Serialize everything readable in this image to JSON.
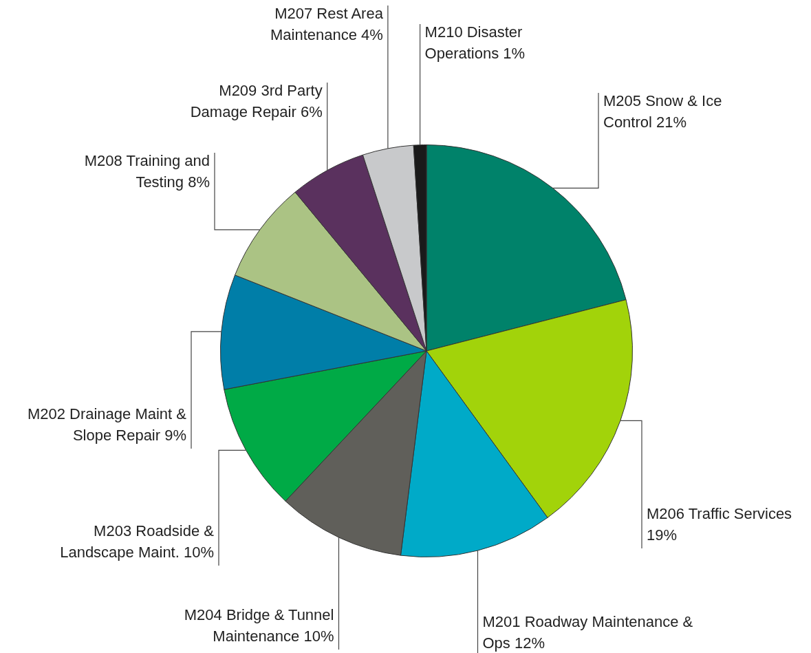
{
  "chart_data": {
    "type": "pie",
    "categories": [
      "M205 Snow & Ice Control",
      "M206 Traffic Services",
      "M201 Roadway Maintenance & Ops",
      "M204 Bridge & Tunnel Maintenance",
      "M203 Roadside & Landscape Maint.",
      "M202 Drainage Maint & Slope Repair",
      "M208 Training and Testing",
      "M209 3rd Party Damage Repair",
      "M207 Rest Area Maintenance",
      "M210 Disaster Operations"
    ],
    "values": [
      21,
      19,
      12,
      10,
      10,
      9,
      8,
      6,
      4,
      1
    ],
    "value_labels": [
      "21%",
      "19%",
      "12%",
      "10%",
      "10%",
      "9%",
      "8%",
      "6%",
      "4%",
      "1%"
    ],
    "colors": [
      "#00826a",
      "#a2d30a",
      "#00aac8",
      "#605f5a",
      "#00aa46",
      "#007ea8",
      "#abc384",
      "#5a315e",
      "#c8c9cb",
      "#1a1a1a"
    ]
  }
}
